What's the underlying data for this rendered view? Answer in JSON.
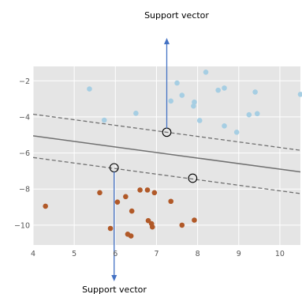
{
  "chart_data": {
    "type": "scatter",
    "title": "",
    "xlabel": "",
    "ylabel": "",
    "xlim": [
      4,
      10.5
    ],
    "ylim": [
      -11.1,
      -1.2
    ],
    "xticks": [
      4,
      5,
      6,
      7,
      8,
      9,
      10
    ],
    "yticks": [
      -10,
      -8,
      -6,
      -4,
      -2
    ],
    "xtick_labels": [
      "4",
      "5",
      "6",
      "7",
      "8",
      "9",
      "10"
    ],
    "ytick_labels": [
      "−10",
      "−8",
      "−6",
      "−4",
      "−2"
    ],
    "grid": true,
    "background": "#e5e5e5",
    "series": [
      {
        "color": "#a6cee3",
        "points": [
          [
            5.37,
            -2.45
          ],
          [
            5.73,
            -4.18
          ],
          [
            6.5,
            -3.8
          ],
          [
            7.35,
            -3.12
          ],
          [
            7.5,
            -2.12
          ],
          [
            7.62,
            -2.8
          ],
          [
            7.9,
            -3.4
          ],
          [
            7.92,
            -3.18
          ],
          [
            8.05,
            -4.2
          ],
          [
            8.2,
            -1.52
          ],
          [
            8.5,
            -2.52
          ],
          [
            8.65,
            -2.4
          ],
          [
            8.65,
            -4.5
          ],
          [
            8.95,
            -4.85
          ],
          [
            9.25,
            -3.88
          ],
          [
            9.4,
            -2.62
          ],
          [
            9.45,
            -3.82
          ],
          [
            10.5,
            -2.75
          ]
        ]
      },
      {
        "color": "#b15928",
        "points": [
          [
            4.3,
            -8.95
          ],
          [
            5.62,
            -8.2
          ],
          [
            5.88,
            -10.18
          ],
          [
            6.05,
            -8.72
          ],
          [
            6.25,
            -8.42
          ],
          [
            6.3,
            -10.5
          ],
          [
            6.38,
            -10.6
          ],
          [
            6.4,
            -9.22
          ],
          [
            6.6,
            -8.05
          ],
          [
            6.78,
            -8.05
          ],
          [
            6.8,
            -9.75
          ],
          [
            6.88,
            -9.92
          ],
          [
            6.9,
            -10.1
          ],
          [
            6.95,
            -8.2
          ],
          [
            7.35,
            -8.68
          ],
          [
            7.62,
            -10.0
          ],
          [
            7.92,
            -9.72
          ]
        ]
      }
    ],
    "decision_boundary": {
      "x": [
        4,
        10.5
      ],
      "y": [
        -5.05,
        -7.05
      ],
      "style": "solid",
      "color": "#707070"
    },
    "margins": [
      {
        "x": [
          4,
          10.5
        ],
        "y": [
          -3.85,
          -5.85
        ],
        "style": "dashed",
        "color": "#707070"
      },
      {
        "x": [
          4,
          10.5
        ],
        "y": [
          -6.25,
          -8.25
        ],
        "style": "dashed",
        "color": "#707070"
      }
    ],
    "support_vectors": [
      [
        7.25,
        -4.85
      ],
      [
        5.97,
        -6.82
      ],
      [
        7.88,
        -7.4
      ]
    ],
    "annotations": [
      {
        "text": "Support vector",
        "arrow_from": [
          7.25,
          -4.85
        ],
        "arrow_direction": "up"
      },
      {
        "text": "Support vector",
        "arrow_from": [
          5.97,
          -6.82
        ],
        "arrow_direction": "down"
      }
    ],
    "arrow_color": "#4472c4"
  }
}
